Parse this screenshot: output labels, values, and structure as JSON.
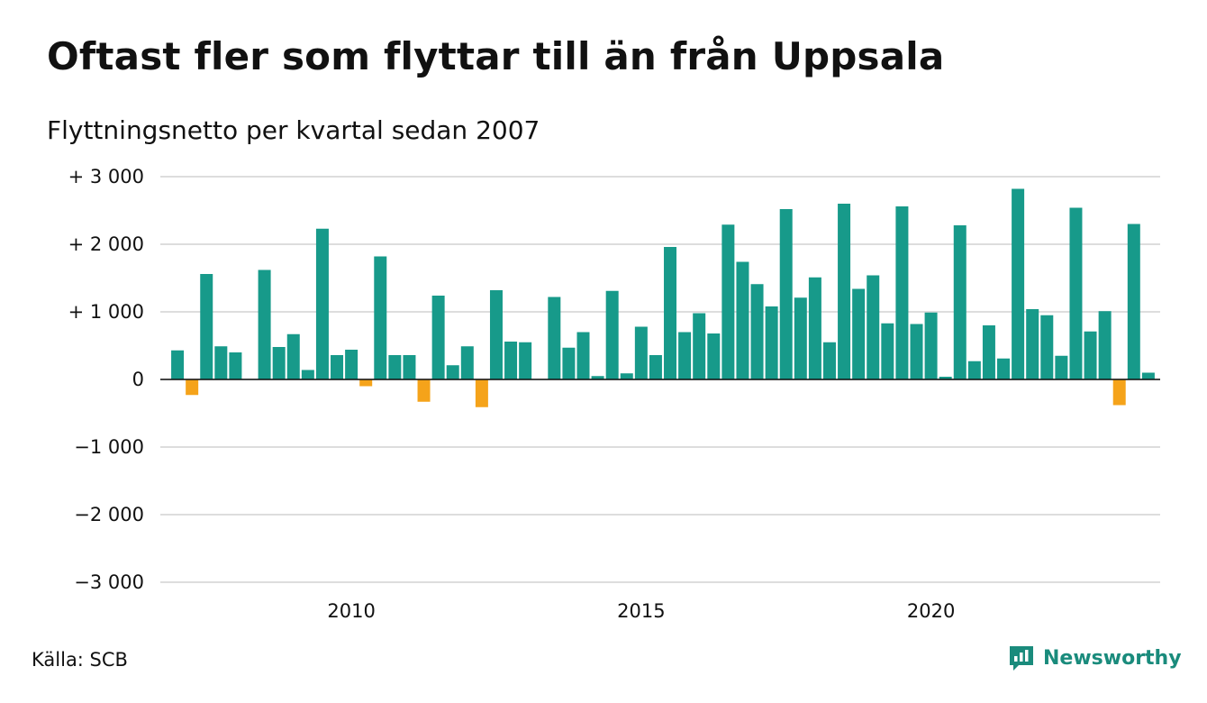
{
  "title": "Oftast fler som flyttar till än från Uppsala",
  "subtitle": "Flyttningsnetto per kvartal sedan 2007",
  "source": "Källa: SCB",
  "brand": "Newsworthy",
  "colors": {
    "positive": "#179a8a",
    "negative": "#f5a31a",
    "grid": "#dddddd",
    "brand": "#1a8b7c"
  },
  "chart_data": {
    "type": "bar",
    "x_start": "2007 Q1",
    "x_ticks": [
      "2010",
      "2015",
      "2020"
    ],
    "y_ticks": [
      "+ 3 000",
      "+ 2 000",
      "+ 1 000",
      "0",
      "−1 000",
      "−2 000",
      "−3 000"
    ],
    "ylim": [
      -3000,
      3000
    ],
    "grid": true,
    "values": [
      430,
      -230,
      1560,
      490,
      400,
      0,
      1620,
      480,
      670,
      140,
      2230,
      360,
      440,
      -100,
      1820,
      360,
      360,
      -330,
      1240,
      210,
      490,
      -410,
      1320,
      560,
      550,
      0,
      1220,
      470,
      700,
      50,
      1310,
      90,
      780,
      360,
      1960,
      700,
      980,
      680,
      2290,
      1740,
      1410,
      1080,
      2520,
      1210,
      1510,
      550,
      2600,
      1340,
      1540,
      830,
      2560,
      820,
      990,
      40,
      2280,
      270,
      800,
      310,
      2820,
      1040,
      950,
      350,
      2540,
      710,
      1010,
      -380,
      2300,
      100
    ]
  }
}
